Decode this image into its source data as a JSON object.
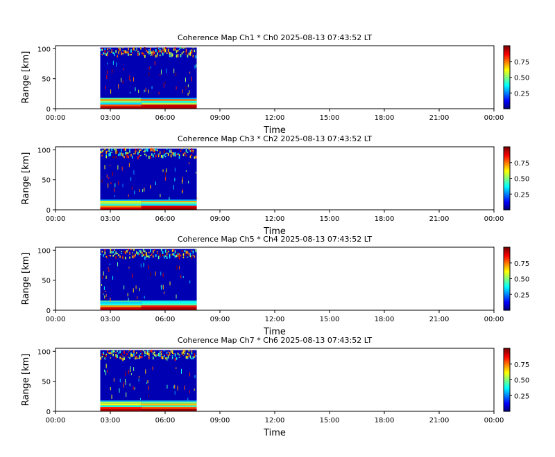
{
  "figure": {
    "background": "#ffffff"
  },
  "chart_data": [
    {
      "type": "heatmap",
      "title": "Coherence Map Ch1 * Ch0 2025-08-13 07:43:52 LT",
      "xlabel": "Time",
      "ylabel": "Range [km]",
      "xlim": [
        0,
        24
      ],
      "ylim": [
        0,
        105
      ],
      "x_ticks": [
        "00:00",
        "03:00",
        "06:00",
        "09:00",
        "12:00",
        "15:00",
        "18:00",
        "21:00",
        "00:00"
      ],
      "y_ticks": [
        "0",
        "50",
        "100"
      ],
      "colorbar_ticks": [
        "0.25",
        "0.50",
        "0.75"
      ],
      "colorbar_range": [
        0.0,
        1.0
      ],
      "colormap": "jet",
      "data_time_range": [
        2.45,
        7.73
      ],
      "split_time": 4.7,
      "low_layers": [
        {
          "from": 0,
          "to": 4,
          "value": [
            0.95,
            0.95
          ]
        },
        {
          "from": 4,
          "to": 7,
          "value": [
            0.8,
            0.92
          ]
        },
        {
          "from": 7,
          "to": 10,
          "value": [
            0.35,
            0.55
          ]
        },
        {
          "from": 10,
          "to": 13,
          "value": [
            0.5,
            0.4
          ]
        },
        {
          "from": 13,
          "to": 16,
          "value": [
            0.7,
            0.75
          ]
        },
        {
          "from": 16,
          "to": 18,
          "value": [
            0.45,
            0.3
          ]
        }
      ],
      "background_value": 0.05,
      "seed": 11
    },
    {
      "type": "heatmap",
      "title": "Coherence Map Ch3 * Ch2 2025-08-13 07:43:52 LT",
      "xlabel": "Time",
      "ylabel": "Range [km]",
      "xlim": [
        0,
        24
      ],
      "ylim": [
        0,
        105
      ],
      "x_ticks": [
        "00:00",
        "03:00",
        "06:00",
        "09:00",
        "12:00",
        "15:00",
        "18:00",
        "21:00",
        "00:00"
      ],
      "y_ticks": [
        "0",
        "50",
        "100"
      ],
      "colorbar_ticks": [
        "0.25",
        "0.50",
        "0.75"
      ],
      "colorbar_range": [
        0.0,
        1.0
      ],
      "colormap": "jet",
      "data_time_range": [
        2.45,
        7.73
      ],
      "split_time": 4.7,
      "low_layers": [
        {
          "from": 0,
          "to": 4,
          "value": [
            0.92,
            0.97
          ]
        },
        {
          "from": 4,
          "to": 7,
          "value": [
            0.75,
            0.9
          ]
        },
        {
          "from": 7,
          "to": 10,
          "value": [
            0.42,
            0.35
          ]
        },
        {
          "from": 10,
          "to": 13,
          "value": [
            0.55,
            0.5
          ]
        },
        {
          "from": 13,
          "to": 15,
          "value": [
            0.62,
            0.7
          ]
        },
        {
          "from": 15,
          "to": 17,
          "value": [
            0.3,
            0.3
          ]
        }
      ],
      "background_value": 0.05,
      "seed": 23
    },
    {
      "type": "heatmap",
      "title": "Coherence Map Ch5 * Ch4 2025-08-13 07:43:52 LT",
      "xlabel": "Time",
      "ylabel": "Range [km]",
      "xlim": [
        0,
        24
      ],
      "ylim": [
        0,
        105
      ],
      "x_ticks": [
        "00:00",
        "03:00",
        "06:00",
        "09:00",
        "12:00",
        "15:00",
        "18:00",
        "21:00",
        "00:00"
      ],
      "y_ticks": [
        "0",
        "50",
        "100"
      ],
      "colorbar_ticks": [
        "0.25",
        "0.50",
        "0.75"
      ],
      "colorbar_range": [
        0.0,
        1.0
      ],
      "colormap": "jet",
      "data_time_range": [
        2.45,
        7.73
      ],
      "split_time": 4.7,
      "low_layers": [
        {
          "from": 0,
          "to": 5,
          "value": [
            0.93,
            0.96
          ]
        },
        {
          "from": 5,
          "to": 8,
          "value": [
            0.72,
            0.85
          ]
        },
        {
          "from": 8,
          "to": 11,
          "value": [
            0.4,
            0.45
          ]
        },
        {
          "from": 11,
          "to": 14,
          "value": [
            0.33,
            0.38
          ]
        },
        {
          "from": 14,
          "to": 16,
          "value": [
            0.45,
            0.4
          ]
        }
      ],
      "background_value": 0.05,
      "seed": 37
    },
    {
      "type": "heatmap",
      "title": "Coherence Map Ch7 * Ch6 2025-08-13 07:43:52 LT",
      "xlabel": "Time",
      "ylabel": "Range [km]",
      "xlim": [
        0,
        24
      ],
      "ylim": [
        0,
        105
      ],
      "x_ticks": [
        "00:00",
        "03:00",
        "06:00",
        "09:00",
        "12:00",
        "15:00",
        "18:00",
        "21:00",
        "00:00"
      ],
      "y_ticks": [
        "0",
        "50",
        "100"
      ],
      "colorbar_ticks": [
        "0.25",
        "0.50",
        "0.75"
      ],
      "colorbar_range": [
        0.0,
        1.0
      ],
      "colormap": "jet",
      "data_time_range": [
        2.45,
        7.73
      ],
      "split_time": 4.7,
      "low_layers": [
        {
          "from": 0,
          "to": 4,
          "value": [
            0.95,
            0.97
          ]
        },
        {
          "from": 4,
          "to": 7,
          "value": [
            0.85,
            0.8
          ]
        },
        {
          "from": 7,
          "to": 10,
          "value": [
            0.4,
            0.45
          ]
        },
        {
          "from": 10,
          "to": 13,
          "value": [
            0.62,
            0.68
          ]
        },
        {
          "from": 13,
          "to": 16,
          "value": [
            0.55,
            0.5
          ]
        },
        {
          "from": 16,
          "to": 18,
          "value": [
            0.3,
            0.3
          ]
        }
      ],
      "background_value": 0.05,
      "seed": 51
    }
  ]
}
